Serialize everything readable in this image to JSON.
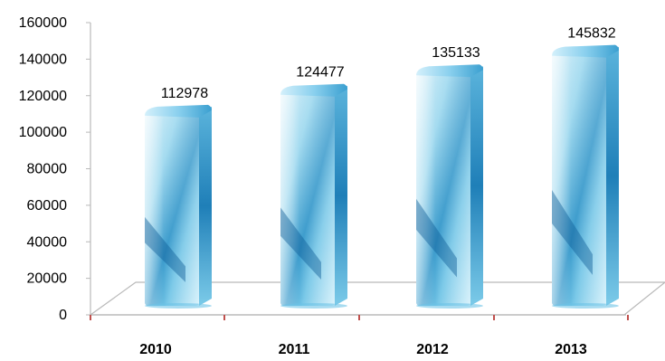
{
  "chart_data": {
    "type": "bar",
    "title": "",
    "xlabel": "",
    "ylabel": "",
    "categories": [
      "2010",
      "2011",
      "2012",
      "2013"
    ],
    "values": [
      112978,
      124477,
      135133,
      145832
    ],
    "data_labels": [
      "112978",
      "124477",
      "135133",
      "145832"
    ],
    "ylim": [
      0,
      160000
    ],
    "y_ticks": [
      0,
      20000,
      40000,
      60000,
      80000,
      100000,
      120000,
      140000,
      160000
    ],
    "y_tick_labels": [
      "0",
      "20000",
      "40000",
      "60000",
      "80000",
      "100000",
      "120000",
      "140000",
      "160000"
    ],
    "grid": false,
    "legend": "none",
    "style": "3d-cylinder-bars-water-texture",
    "colors": {
      "bar_light": "#dff3fb",
      "bar_mid": "#6cc3e6",
      "bar_dark": "#1a7fb5",
      "bar_deep": "#0f5e96",
      "axis": "#b9b9b9",
      "tick_mark": "#c0504d"
    }
  }
}
